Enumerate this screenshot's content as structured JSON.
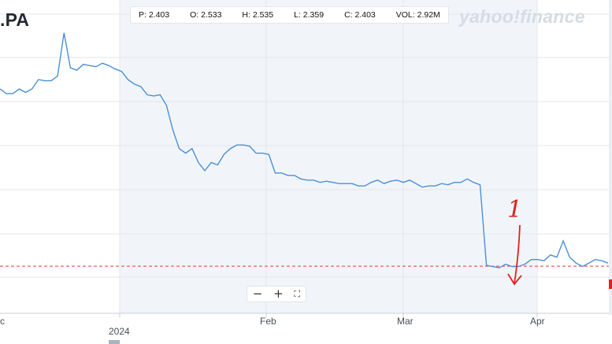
{
  "ticker": ".PA",
  "brand": "yahoo!finance",
  "ohlc": {
    "p": "P: 2.403",
    "o": "O: 2.533",
    "h": "H: 2.535",
    "l": "L: 2.359",
    "c": "C: 2.403",
    "vol": "VOL: 2.92M"
  },
  "zoom": {
    "minus": "−",
    "plus": "+",
    "fullscreen": "⛶"
  },
  "annotation": {
    "text": "1",
    "color": "#e02020"
  },
  "colors": {
    "line": "#4b8fd6",
    "grid": "#e3e6ea",
    "ref_line": "#e03c3c",
    "shade": "#f1f5f9"
  },
  "chart_data": {
    "type": "line",
    "x_tick_labels": [
      "c",
      "2024",
      "Feb",
      "Mar",
      "Apr"
    ],
    "reference_level": 2.403,
    "grid": true,
    "series": [
      {
        "values": [
          3.92,
          3.88,
          3.88,
          3.92,
          3.89,
          3.92,
          4.0,
          3.99,
          3.99,
          4.03,
          4.4,
          4.1,
          4.08,
          4.13,
          4.12,
          4.11,
          4.14,
          4.12,
          4.09,
          4.07,
          4.0,
          3.96,
          3.94,
          3.87,
          3.86,
          3.87,
          3.78,
          3.57,
          3.41,
          3.37,
          3.41,
          3.29,
          3.22,
          3.29,
          3.27,
          3.36,
          3.41,
          3.44,
          3.44,
          3.43,
          3.37,
          3.37,
          3.36,
          3.2,
          3.2,
          3.18,
          3.18,
          3.15,
          3.14,
          3.14,
          3.12,
          3.13,
          3.12,
          3.11,
          3.11,
          3.11,
          3.09,
          3.09,
          3.12,
          3.14,
          3.11,
          3.13,
          3.14,
          3.12,
          3.14,
          3.11,
          3.08,
          3.09,
          3.09,
          3.11,
          3.1,
          3.12,
          3.12,
          3.15,
          3.12,
          3.1,
          2.41,
          2.4,
          2.39,
          2.42,
          2.4,
          2.4,
          2.42,
          2.46,
          2.46,
          2.45,
          2.5,
          2.48,
          2.62,
          2.48,
          2.43,
          2.4,
          2.43,
          2.46,
          2.45,
          2.43
        ]
      }
    ]
  }
}
